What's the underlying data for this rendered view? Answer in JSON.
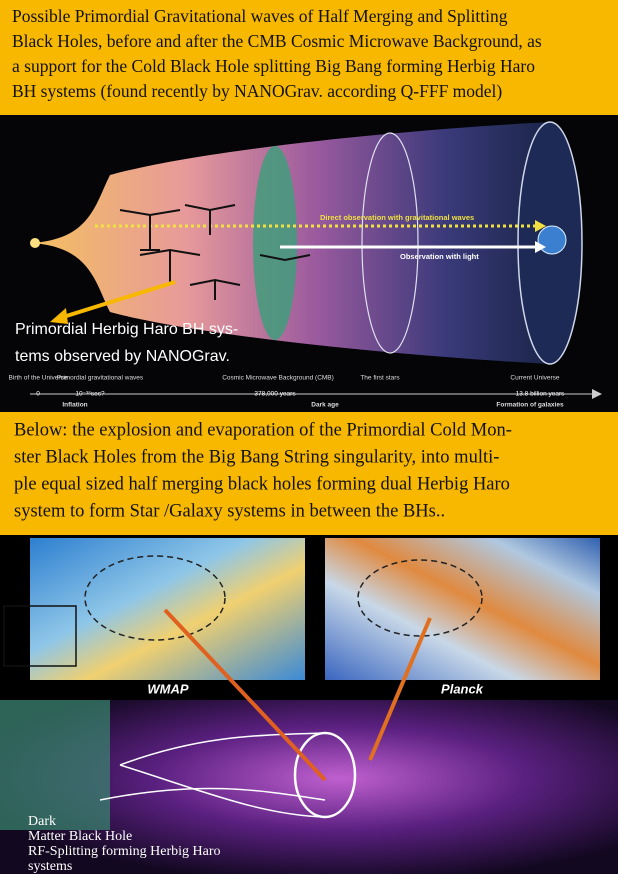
{
  "top": {
    "lines": [
      "Possible Primordial Gravitational waves of Half Merging and Splitting",
      "Black Holes, before and after the CMB Cosmic Microwave Background, as",
      "a support for the Cold Black Hole splitting Big Bang forming Herbig Haro",
      "BH systems (found recently by NANOGrav. according Q-FFF model)"
    ]
  },
  "diagram": {
    "gw_label": "Direct observation with gravitational waves",
    "light_label": "Observation with light",
    "callout": [
      "Primordial Herbig Haro BH sys-",
      "tems observed by NANOGrav."
    ],
    "timeline": {
      "events": [
        "Birth of the Universe",
        "Primordial gravitational waves",
        "Cosmic Microwave Background (CMB)",
        "The first stars",
        "Current Universe"
      ],
      "times": [
        "0",
        "10⁻³⁸sec?",
        "378,000 years",
        "13.8 billion years"
      ],
      "eras": [
        "Inflation",
        "Dark age",
        "Formation of galaxies"
      ]
    }
  },
  "middle": {
    "lines": [
      "Below: the explosion and evaporation of the Primordial Cold Mon-",
      "ster Black Holes from the Big Bang String singularity, into multi-",
      "ple equal sized half merging black holes forming dual Herbig Haro",
      "system to form Star /Galaxy systems in between the BHs.."
    ]
  },
  "maps": {
    "left": "WMAP",
    "right": "Planck"
  },
  "bottom": {
    "lines": [
      "Dark",
      "Matter Black Hole",
      "RF-Splitting forming Herbig Haro",
      "systems"
    ]
  }
}
